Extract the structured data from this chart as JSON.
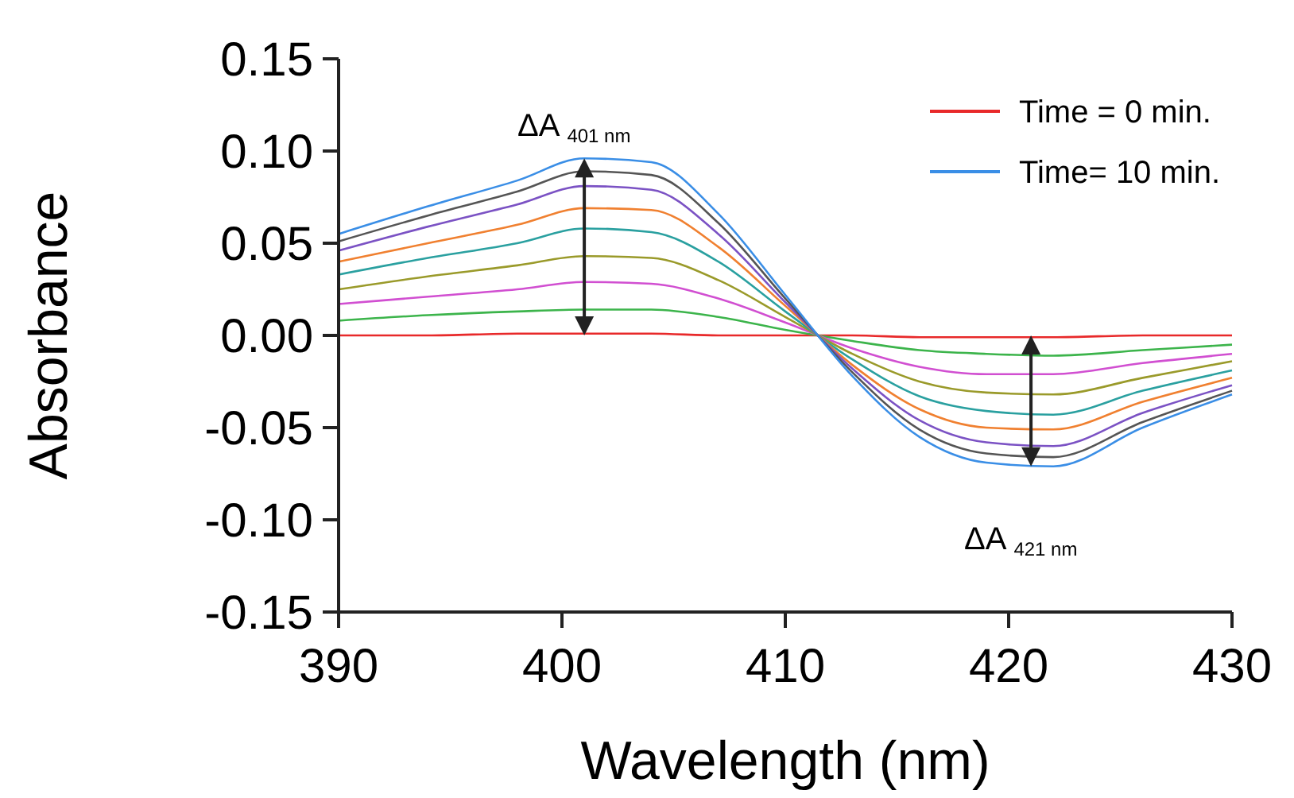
{
  "chart_data": {
    "type": "line",
    "xlabel": "Wavelength (nm)",
    "ylabel": "Absorbance",
    "x": [
      390,
      394,
      398,
      401,
      404,
      407,
      410,
      413,
      416,
      419,
      422,
      426,
      430
    ],
    "xlim": [
      390,
      430
    ],
    "xticks": [
      390,
      400,
      410,
      420,
      430
    ],
    "ylim": [
      -0.15,
      0.15
    ],
    "yticks": [
      {
        "value": -0.15,
        "label": "-0.15"
      },
      {
        "value": -0.1,
        "label": "-0.10"
      },
      {
        "value": -0.05,
        "label": "-0.05"
      },
      {
        "value": 0,
        "label": "0.00"
      },
      {
        "value": 0.05,
        "label": "0.05"
      },
      {
        "value": 0.1,
        "label": "0.10"
      },
      {
        "value": 0.15,
        "label": "0.15"
      }
    ],
    "grid": false,
    "legend": "top right",
    "marker": "none",
    "line_style": "solid",
    "series": [
      {
        "name": "Time = 0 min.",
        "color": "#e8292a",
        "values": [
          0.0,
          0.0,
          0.001,
          0.001,
          0.001,
          0.0,
          0.0,
          0.0,
          -0.001,
          -0.001,
          -0.001,
          0.0,
          0.0
        ]
      },
      {
        "color": "#3cb44b",
        "values": [
          0.008,
          0.011,
          0.013,
          0.014,
          0.014,
          0.01,
          0.003,
          -0.003,
          -0.008,
          -0.01,
          -0.011,
          -0.008,
          -0.005
        ]
      },
      {
        "color": "#d14fd1",
        "values": [
          0.017,
          0.021,
          0.025,
          0.029,
          0.028,
          0.02,
          0.007,
          -0.007,
          -0.017,
          -0.021,
          -0.021,
          -0.015,
          -0.01
        ]
      },
      {
        "color": "#9a9a2a",
        "values": [
          0.025,
          0.032,
          0.038,
          0.043,
          0.042,
          0.03,
          0.01,
          -0.01,
          -0.025,
          -0.031,
          -0.032,
          -0.023,
          -0.014
        ]
      },
      {
        "color": "#2aa0a0",
        "values": [
          0.033,
          0.042,
          0.05,
          0.058,
          0.056,
          0.04,
          0.013,
          -0.013,
          -0.033,
          -0.041,
          -0.043,
          -0.03,
          -0.019
        ]
      },
      {
        "color": "#f08030",
        "values": [
          0.04,
          0.05,
          0.06,
          0.069,
          0.068,
          0.048,
          0.016,
          -0.016,
          -0.04,
          -0.05,
          -0.051,
          -0.036,
          -0.023
        ]
      },
      {
        "color": "#7b52c4",
        "values": [
          0.046,
          0.059,
          0.071,
          0.081,
          0.079,
          0.055,
          0.018,
          -0.018,
          -0.046,
          -0.058,
          -0.06,
          -0.042,
          -0.027
        ]
      },
      {
        "color": "#555555",
        "values": [
          0.051,
          0.065,
          0.078,
          0.089,
          0.087,
          0.061,
          0.02,
          -0.02,
          -0.051,
          -0.064,
          -0.066,
          -0.047,
          -0.03
        ]
      },
      {
        "name": "Time= 10 min.",
        "color": "#3a8ee6",
        "values": [
          0.055,
          0.07,
          0.084,
          0.096,
          0.094,
          0.066,
          0.022,
          -0.022,
          -0.055,
          -0.069,
          -0.071,
          -0.05,
          -0.032
        ]
      }
    ],
    "annotations": [
      {
        "text": "ΔA $_{401 nm}$",
        "x": 401,
        "y": 0.096
      },
      {
        "text": "ΔA $_{421 nm}$",
        "x": 421,
        "y": -0.071
      }
    ]
  }
}
